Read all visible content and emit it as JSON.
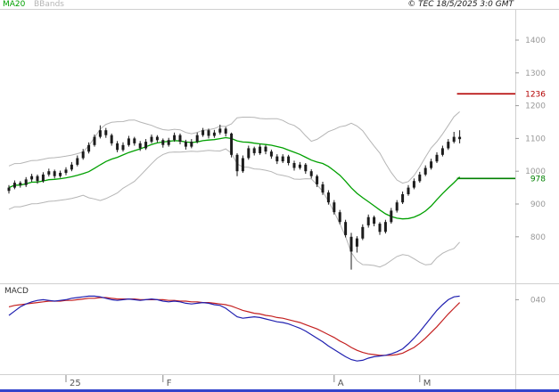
{
  "header": {
    "legend_ma20": "MA20",
    "legend_bbands": "BBands",
    "copyright": "© TEC 18/5/2025 3:0 GMT"
  },
  "colors": {
    "ma20": "#00a000",
    "bbands": "#b5b5b5",
    "candle": "#1c1c1c",
    "resistance": "#b30000",
    "support": "#008000",
    "macd_line": "#2020b0",
    "macd_signal": "#c42020",
    "axis_text": "#999999",
    "frame": "#d0d0d0",
    "bottom_bar": "#3344cc"
  },
  "chart_data": [
    {
      "type": "candlestick",
      "panel": "price",
      "title": "",
      "ylabel": "",
      "ylim": [
        680,
        1430
      ],
      "y_ticks": [
        1400,
        1300,
        1200,
        1100,
        1000,
        900,
        800
      ],
      "x_ticks": [
        {
          "label": "25",
          "index": 10
        },
        {
          "label": "F",
          "index": 27
        },
        {
          "label": "A",
          "index": 57
        },
        {
          "label": "M",
          "index": 72
        }
      ],
      "levels": {
        "resistance": {
          "value": 1236,
          "label": "1236"
        },
        "support": {
          "value": 978,
          "label": "978"
        }
      },
      "overlays": [
        "MA20",
        "BBands"
      ],
      "candles_ohlc": [
        [
          940,
          958,
          932,
          950
        ],
        [
          950,
          972,
          945,
          965
        ],
        [
          965,
          970,
          950,
          958
        ],
        [
          958,
          982,
          952,
          975
        ],
        [
          975,
          992,
          968,
          985
        ],
        [
          985,
          990,
          962,
          970
        ],
        [
          970,
          997,
          965,
          990
        ],
        [
          990,
          1008,
          984,
          1000
        ],
        [
          1000,
          1005,
          978,
          985
        ],
        [
          985,
          1002,
          980,
          995
        ],
        [
          995,
          1012,
          988,
          1005
        ],
        [
          1005,
          1028,
          1000,
          1020
        ],
        [
          1020,
          1048,
          1015,
          1040
        ],
        [
          1040,
          1068,
          1035,
          1060
        ],
        [
          1060,
          1088,
          1054,
          1080
        ],
        [
          1080,
          1112,
          1075,
          1105
        ],
        [
          1105,
          1140,
          1100,
          1125
        ],
        [
          1125,
          1132,
          1102,
          1110
        ],
        [
          1110,
          1115,
          1078,
          1085
        ],
        [
          1085,
          1092,
          1058,
          1065
        ],
        [
          1065,
          1088,
          1060,
          1080
        ],
        [
          1080,
          1108,
          1075,
          1100
        ],
        [
          1100,
          1105,
          1078,
          1085
        ],
        [
          1085,
          1092,
          1062,
          1070
        ],
        [
          1070,
          1098,
          1065,
          1090
        ],
        [
          1090,
          1112,
          1085,
          1105
        ],
        [
          1105,
          1110,
          1088,
          1095
        ],
        [
          1095,
          1100,
          1072,
          1080
        ],
        [
          1080,
          1102,
          1075,
          1095
        ],
        [
          1095,
          1118,
          1090,
          1110
        ],
        [
          1110,
          1115,
          1082,
          1090
        ],
        [
          1090,
          1096,
          1066,
          1075
        ],
        [
          1075,
          1098,
          1070,
          1090
        ],
        [
          1090,
          1118,
          1085,
          1110
        ],
        [
          1110,
          1132,
          1105,
          1125
        ],
        [
          1125,
          1130,
          1100,
          1108
        ],
        [
          1108,
          1126,
          1102,
          1118
        ],
        [
          1118,
          1142,
          1112,
          1130
        ],
        [
          1130,
          1135,
          1106,
          1115
        ],
        [
          1115,
          1118,
          1042,
          1050
        ],
        [
          1050,
          1055,
          985,
          1000
        ],
        [
          1000,
          1048,
          995,
          1040
        ],
        [
          1040,
          1078,
          1035,
          1070
        ],
        [
          1070,
          1075,
          1048,
          1055
        ],
        [
          1055,
          1082,
          1050,
          1075
        ],
        [
          1075,
          1080,
          1052,
          1060
        ],
        [
          1060,
          1066,
          1038,
          1045
        ],
        [
          1045,
          1052,
          1022,
          1030
        ],
        [
          1030,
          1052,
          1025,
          1045
        ],
        [
          1045,
          1050,
          1018,
          1025
        ],
        [
          1025,
          1032,
          1002,
          1010
        ],
        [
          1010,
          1028,
          1005,
          1020
        ],
        [
          1020,
          1025,
          992,
          1000
        ],
        [
          1000,
          1006,
          978,
          985
        ],
        [
          985,
          990,
          952,
          960
        ],
        [
          960,
          968,
          928,
          935
        ],
        [
          935,
          942,
          898,
          905
        ],
        [
          905,
          912,
          868,
          875
        ],
        [
          875,
          882,
          838,
          845
        ],
        [
          845,
          852,
          798,
          805
        ],
        [
          800,
          812,
          700,
          755
        ],
        [
          770,
          802,
          752,
          795
        ],
        [
          795,
          838,
          790,
          830
        ],
        [
          835,
          868,
          828,
          860
        ],
        [
          860,
          865,
          832,
          840
        ],
        [
          840,
          845,
          806,
          815
        ],
        [
          815,
          852,
          810,
          845
        ],
        [
          845,
          888,
          840,
          880
        ],
        [
          880,
          912,
          874,
          905
        ],
        [
          905,
          938,
          900,
          930
        ],
        [
          930,
          958,
          925,
          950
        ],
        [
          950,
          978,
          945,
          970
        ],
        [
          970,
          998,
          965,
          990
        ],
        [
          990,
          1018,
          985,
          1010
        ],
        [
          1010,
          1038,
          1005,
          1030
        ],
        [
          1030,
          1058,
          1025,
          1050
        ],
        [
          1050,
          1078,
          1045,
          1070
        ],
        [
          1070,
          1098,
          1065,
          1090
        ],
        [
          1090,
          1120,
          1085,
          1105
        ],
        [
          1105,
          1125,
          1085,
          1098
        ]
      ]
    },
    {
      "type": "line",
      "panel": "macd",
      "title": "MACD",
      "ylim": [
        -0.62,
        0.58
      ],
      "y_tick": {
        "label": "040",
        "value": 0.4
      },
      "series": [
        {
          "name": "macd",
          "color_key": "macd_line",
          "values": [
            0.18,
            0.24,
            0.3,
            0.34,
            0.37,
            0.39,
            0.4,
            0.39,
            0.38,
            0.39,
            0.4,
            0.42,
            0.43,
            0.44,
            0.45,
            0.45,
            0.44,
            0.42,
            0.4,
            0.39,
            0.4,
            0.41,
            0.4,
            0.39,
            0.4,
            0.41,
            0.4,
            0.38,
            0.37,
            0.38,
            0.37,
            0.35,
            0.34,
            0.35,
            0.36,
            0.35,
            0.33,
            0.32,
            0.28,
            0.22,
            0.16,
            0.14,
            0.15,
            0.16,
            0.15,
            0.13,
            0.11,
            0.09,
            0.08,
            0.06,
            0.03,
            0.0,
            -0.04,
            -0.09,
            -0.14,
            -0.19,
            -0.25,
            -0.3,
            -0.35,
            -0.4,
            -0.44,
            -0.46,
            -0.45,
            -0.42,
            -0.4,
            -0.39,
            -0.38,
            -0.36,
            -0.33,
            -0.29,
            -0.22,
            -0.14,
            -0.05,
            0.05,
            0.15,
            0.25,
            0.33,
            0.4,
            0.44,
            0.45
          ]
        },
        {
          "name": "signal",
          "color_key": "macd_signal",
          "values": [
            0.3,
            0.32,
            0.33,
            0.34,
            0.35,
            0.36,
            0.37,
            0.38,
            0.38,
            0.38,
            0.39,
            0.39,
            0.4,
            0.41,
            0.42,
            0.42,
            0.43,
            0.43,
            0.42,
            0.41,
            0.41,
            0.41,
            0.41,
            0.4,
            0.4,
            0.4,
            0.4,
            0.4,
            0.39,
            0.39,
            0.38,
            0.38,
            0.37,
            0.37,
            0.36,
            0.36,
            0.35,
            0.34,
            0.33,
            0.31,
            0.28,
            0.25,
            0.23,
            0.21,
            0.2,
            0.18,
            0.17,
            0.15,
            0.14,
            0.12,
            0.1,
            0.08,
            0.05,
            0.02,
            -0.01,
            -0.05,
            -0.09,
            -0.13,
            -0.18,
            -0.22,
            -0.27,
            -0.31,
            -0.34,
            -0.36,
            -0.37,
            -0.38,
            -0.38,
            -0.38,
            -0.37,
            -0.35,
            -0.31,
            -0.27,
            -0.21,
            -0.14,
            -0.06,
            0.02,
            0.11,
            0.2,
            0.28,
            0.36
          ]
        }
      ]
    }
  ]
}
